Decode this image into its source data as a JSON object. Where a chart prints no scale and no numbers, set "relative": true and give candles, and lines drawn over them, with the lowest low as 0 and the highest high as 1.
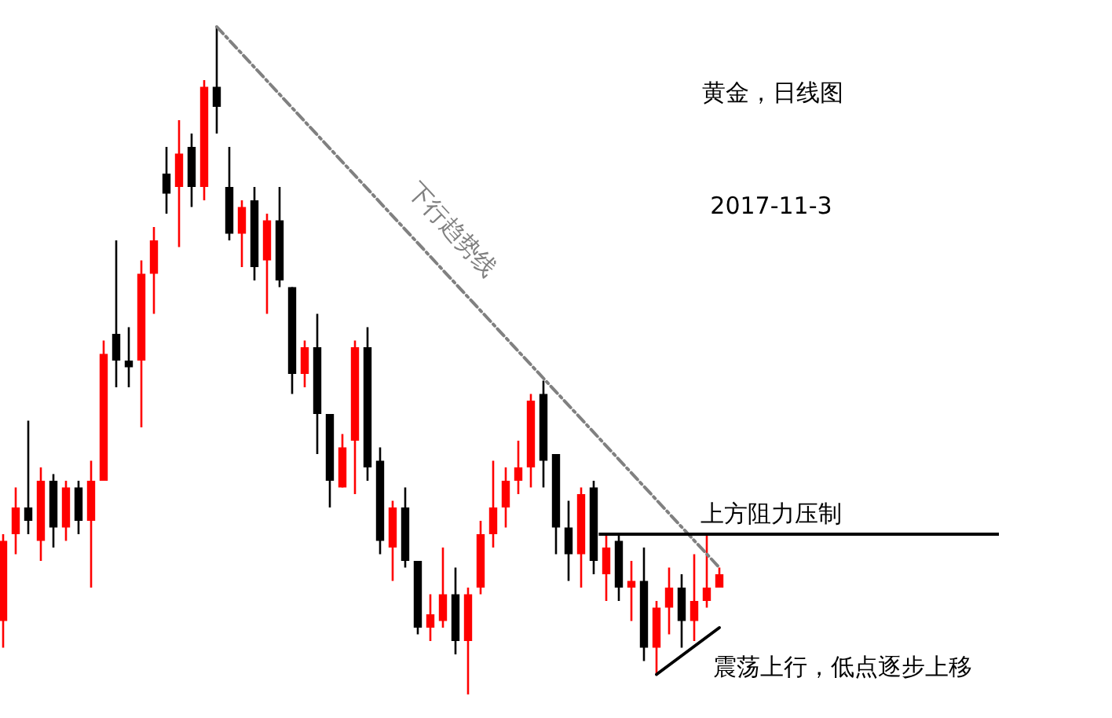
{
  "chart_data": {
    "type": "candlestick",
    "title": "黄金，日线图",
    "subtitle": "2017-11-3",
    "relative": true,
    "categories": [
      null,
      null,
      null,
      null,
      null,
      null,
      null,
      null,
      null,
      null,
      null,
      null,
      null,
      null,
      null,
      null,
      null,
      null,
      null,
      null,
      null,
      null,
      null,
      null,
      null,
      null,
      null,
      null,
      null,
      null,
      null,
      null,
      null,
      null,
      null,
      null,
      null,
      null,
      null,
      null,
      null,
      null,
      null,
      null,
      null,
      null,
      null,
      null,
      null,
      null,
      null,
      null,
      null,
      null,
      null,
      null,
      null,
      null
    ],
    "ohlc": [
      [
        0.11,
        0.24,
        0.07,
        0.23
      ],
      [
        0.24,
        0.31,
        0.21,
        0.28
      ],
      [
        0.28,
        0.41,
        0.24,
        0.26
      ],
      [
        0.23,
        0.34,
        0.2,
        0.32
      ],
      [
        0.32,
        0.33,
        0.22,
        0.25
      ],
      [
        0.25,
        0.32,
        0.23,
        0.31
      ],
      [
        0.31,
        0.32,
        0.24,
        0.26
      ],
      [
        0.26,
        0.35,
        0.16,
        0.32
      ],
      [
        0.32,
        0.53,
        0.32,
        0.51
      ],
      [
        0.54,
        0.68,
        0.46,
        0.5
      ],
      [
        0.5,
        0.55,
        0.46,
        0.49
      ],
      [
        0.5,
        0.65,
        0.4,
        0.63
      ],
      [
        0.63,
        0.7,
        0.57,
        0.68
      ],
      [
        0.78,
        0.82,
        0.72,
        0.75
      ],
      [
        0.76,
        0.86,
        0.67,
        0.81
      ],
      [
        0.82,
        0.84,
        0.73,
        0.76
      ],
      [
        0.76,
        0.92,
        0.74,
        0.91
      ],
      [
        0.91,
        1,
        0.84,
        0.88
      ],
      [
        0.76,
        0.82,
        0.68,
        0.69
      ],
      [
        0.69,
        0.74,
        0.64,
        0.73
      ],
      [
        0.74,
        0.76,
        0.62,
        0.64
      ],
      [
        0.65,
        0.72,
        0.57,
        0.71
      ],
      [
        0.71,
        0.76,
        0.61,
        0.62
      ],
      [
        0.61,
        0.61,
        0.45,
        0.48
      ],
      [
        0.48,
        0.53,
        0.46,
        0.52
      ],
      [
        0.52,
        0.57,
        0.36,
        0.42
      ],
      [
        0.42,
        0.42,
        0.28,
        0.32
      ],
      [
        0.31,
        0.39,
        0.31,
        0.37
      ],
      [
        0.38,
        0.53,
        0.3,
        0.52
      ],
      [
        0.52,
        0.55,
        0.32,
        0.34
      ],
      [
        0.35,
        0.37,
        0.21,
        0.23
      ],
      [
        0.22,
        0.29,
        0.17,
        0.28
      ],
      [
        0.28,
        0.31,
        0.19,
        0.2
      ],
      [
        0.2,
        0.2,
        0.09,
        0.1
      ],
      [
        0.1,
        0.15,
        0.08,
        0.12
      ],
      [
        0.11,
        0.22,
        0.1,
        0.15
      ],
      [
        0.15,
        0.19,
        0.06,
        0.08
      ],
      [
        0.08,
        0.16,
        0,
        0.15
      ],
      [
        0.16,
        0.26,
        0.15,
        0.24
      ],
      [
        0.24,
        0.35,
        0.22,
        0.28
      ],
      [
        0.28,
        0.34,
        0.25,
        0.32
      ],
      [
        0.32,
        0.38,
        0.3,
        0.34
      ],
      [
        0.34,
        0.45,
        0.31,
        0.44
      ],
      [
        0.45,
        0.47,
        0.31,
        0.35
      ],
      [
        0.36,
        0.36,
        0.21,
        0.25
      ],
      [
        0.25,
        0.29,
        0.17,
        0.21
      ],
      [
        0.21,
        0.31,
        0.16,
        0.3
      ],
      [
        0.31,
        0.32,
        0.18,
        0.2
      ],
      [
        0.18,
        0.24,
        0.14,
        0.22
      ],
      [
        0.23,
        0.24,
        0.14,
        0.16
      ],
      [
        0.16,
        0.2,
        0.11,
        0.17
      ],
      [
        0.17,
        0.22,
        0.05,
        0.07
      ],
      [
        0.07,
        0.14,
        0.03,
        0.13
      ],
      [
        0.13,
        0.19,
        0.09,
        0.16
      ],
      [
        0.16,
        0.18,
        0.07,
        0.11
      ],
      [
        0.11,
        0.21,
        0.08,
        0.14
      ],
      [
        0.14,
        0.24,
        0.13,
        0.16
      ],
      [
        0.16,
        0.19,
        0.16,
        0.18
      ]
    ],
    "colors": [
      "#ff0000",
      "#ff0000",
      "#000000",
      "#ff0000",
      "#000000",
      "#ff0000",
      "#000000",
      "#ff0000",
      "#ff0000",
      "#000000",
      "#000000",
      "#ff0000",
      "#ff0000",
      "#000000",
      "#ff0000",
      "#000000",
      "#ff0000",
      "#000000",
      "#000000",
      "#ff0000",
      "#000000",
      "#ff0000",
      "#000000",
      "#000000",
      "#ff0000",
      "#000000",
      "#000000",
      "#ff0000",
      "#ff0000",
      "#000000",
      "#000000",
      "#ff0000",
      "#000000",
      "#000000",
      "#ff0000",
      "#ff0000",
      "#000000",
      "#ff0000",
      "#ff0000",
      "#ff0000",
      "#ff0000",
      "#ff0000",
      "#ff0000",
      "#000000",
      "#000000",
      "#000000",
      "#ff0000",
      "#000000",
      "#ff0000",
      "#000000",
      "#ff0000",
      "#000000",
      "#ff0000",
      "#ff0000",
      "#000000",
      "#ff0000",
      "#ff0000",
      "#ff0000"
    ],
    "series": [
      {
        "type": "line",
        "name": "下行趋势线",
        "color": "#808080",
        "line_style": "dashed",
        "values": [
          null,
          null,
          null,
          null,
          null,
          null,
          null,
          null,
          null,
          null,
          null,
          null,
          null,
          null,
          null,
          null,
          null,
          1.0,
          null,
          null,
          null,
          null,
          null,
          null,
          null,
          null,
          null,
          null,
          null,
          null,
          null,
          null,
          null,
          null,
          null,
          null,
          null,
          null,
          null,
          null,
          null,
          null,
          null,
          null,
          null,
          null,
          null,
          null,
          null,
          null,
          null,
          null,
          null,
          null,
          null,
          null,
          null,
          0.19
        ]
      },
      {
        "type": "line",
        "name": "震荡上行，低点逐步上移",
        "color": "#000000",
        "line_style": "solid",
        "values": [
          null,
          null,
          null,
          null,
          null,
          null,
          null,
          null,
          null,
          null,
          null,
          null,
          null,
          null,
          null,
          null,
          null,
          null,
          null,
          null,
          null,
          null,
          null,
          null,
          null,
          null,
          null,
          null,
          null,
          null,
          null,
          null,
          null,
          null,
          null,
          null,
          null,
          null,
          null,
          null,
          null,
          null,
          null,
          null,
          null,
          null,
          null,
          null,
          null,
          null,
          null,
          null,
          0.03,
          null,
          null,
          null,
          null,
          0.1
        ]
      }
    ],
    "ref_lines": [
      {
        "axis": "y",
        "value": 0.24,
        "label": "上方阻力压制",
        "color": "#000000"
      }
    ]
  }
}
